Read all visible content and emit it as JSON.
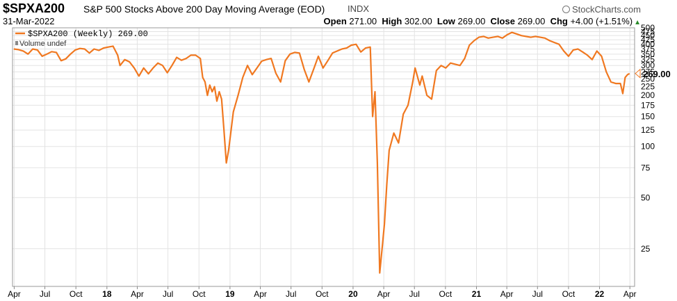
{
  "header": {
    "symbol": "$SPXA200",
    "name": "S&P 500 Stocks Above 200 Day Moving Average (EOD)",
    "exchange": "INDX",
    "logo": "StockCharts.com",
    "date": "31-Mar-2022",
    "open_label": "Open",
    "open": "271.00",
    "high_label": "High",
    "high": "302.00",
    "low_label": "Low",
    "low": "269.00",
    "close_label": "Close",
    "close": "269.00",
    "chg_label": "Chg",
    "chg": "+4.00 (+1.51%)"
  },
  "legend": {
    "series_label": "$SPXA200 (Weekly) 269.00",
    "volume_label": "Volume undef"
  },
  "last_value_label": "269.00",
  "colors": {
    "line": "#f07820",
    "grid": "#e3e3e3",
    "up": "#2a8a2a"
  },
  "chart_data": {
    "type": "line",
    "title": "$SPXA200 S&P 500 Stocks Above 200 Day Moving Average (EOD)",
    "scale": "log",
    "ylim": [
      15,
      500
    ],
    "yticks": [
      25,
      50,
      75,
      100,
      125,
      150,
      175,
      200,
      225,
      250,
      275,
      300,
      325,
      350,
      375,
      400,
      425,
      450,
      475,
      500
    ],
    "ytick_labels": [
      "25",
      "50",
      "75",
      "100",
      "125",
      "150",
      "175",
      "200",
      "225",
      "250",
      "275",
      "300",
      "325",
      "350",
      "375",
      "400",
      "425",
      "450",
      "475",
      "500"
    ],
    "xlim": [
      "2017-03-27",
      "2022-04-15"
    ],
    "x_ticks": [
      {
        "date": "2017-04-01",
        "label": "Apr",
        "bold": false
      },
      {
        "date": "2017-07-01",
        "label": "Jul",
        "bold": false
      },
      {
        "date": "2017-10-01",
        "label": "Oct",
        "bold": false
      },
      {
        "date": "2018-01-01",
        "label": "18",
        "bold": true
      },
      {
        "date": "2018-04-01",
        "label": "Apr",
        "bold": false
      },
      {
        "date": "2018-07-01",
        "label": "Jul",
        "bold": false
      },
      {
        "date": "2018-10-01",
        "label": "Oct",
        "bold": false
      },
      {
        "date": "2019-01-01",
        "label": "19",
        "bold": true
      },
      {
        "date": "2019-04-01",
        "label": "Apr",
        "bold": false
      },
      {
        "date": "2019-07-01",
        "label": "Jul",
        "bold": false
      },
      {
        "date": "2019-10-01",
        "label": "Oct",
        "bold": false
      },
      {
        "date": "2020-01-01",
        "label": "20",
        "bold": true
      },
      {
        "date": "2020-04-01",
        "label": "Apr",
        "bold": false
      },
      {
        "date": "2020-07-01",
        "label": "Jul",
        "bold": false
      },
      {
        "date": "2020-10-01",
        "label": "Oct",
        "bold": false
      },
      {
        "date": "2021-01-01",
        "label": "21",
        "bold": true
      },
      {
        "date": "2021-04-01",
        "label": "Apr",
        "bold": false
      },
      {
        "date": "2021-07-01",
        "label": "Jul",
        "bold": false
      },
      {
        "date": "2021-10-01",
        "label": "Oct",
        "bold": false
      },
      {
        "date": "2022-01-01",
        "label": "22",
        "bold": true
      },
      {
        "date": "2022-04-01",
        "label": "Apr",
        "bold": false
      }
    ],
    "series": [
      {
        "name": "$SPXA200 (Weekly)",
        "points": [
          [
            "2017-03-31",
            375
          ],
          [
            "2017-04-14",
            372
          ],
          [
            "2017-04-28",
            365
          ],
          [
            "2017-05-12",
            350
          ],
          [
            "2017-05-26",
            375
          ],
          [
            "2017-06-09",
            370
          ],
          [
            "2017-06-23",
            340
          ],
          [
            "2017-07-07",
            350
          ],
          [
            "2017-07-21",
            362
          ],
          [
            "2017-08-04",
            358
          ],
          [
            "2017-08-18",
            320
          ],
          [
            "2017-09-01",
            328
          ],
          [
            "2017-09-15",
            350
          ],
          [
            "2017-09-29",
            370
          ],
          [
            "2017-10-13",
            378
          ],
          [
            "2017-10-27",
            375
          ],
          [
            "2017-11-10",
            355
          ],
          [
            "2017-11-24",
            375
          ],
          [
            "2017-12-08",
            368
          ],
          [
            "2017-12-22",
            380
          ],
          [
            "2018-01-05",
            385
          ],
          [
            "2018-01-19",
            390
          ],
          [
            "2018-02-02",
            345
          ],
          [
            "2018-02-09",
            300
          ],
          [
            "2018-02-23",
            325
          ],
          [
            "2018-03-09",
            315
          ],
          [
            "2018-03-23",
            290
          ],
          [
            "2018-04-06",
            260
          ],
          [
            "2018-04-20",
            290
          ],
          [
            "2018-05-04",
            268
          ],
          [
            "2018-05-18",
            290
          ],
          [
            "2018-06-01",
            310
          ],
          [
            "2018-06-15",
            300
          ],
          [
            "2018-06-29",
            272
          ],
          [
            "2018-07-13",
            300
          ],
          [
            "2018-07-27",
            335
          ],
          [
            "2018-08-10",
            322
          ],
          [
            "2018-08-24",
            330
          ],
          [
            "2018-09-07",
            345
          ],
          [
            "2018-09-21",
            345
          ],
          [
            "2018-10-05",
            330
          ],
          [
            "2018-10-12",
            255
          ],
          [
            "2018-10-19",
            240
          ],
          [
            "2018-10-26",
            200
          ],
          [
            "2018-11-02",
            230
          ],
          [
            "2018-11-09",
            210
          ],
          [
            "2018-11-16",
            225
          ],
          [
            "2018-11-23",
            185
          ],
          [
            "2018-11-30",
            210
          ],
          [
            "2018-12-07",
            190
          ],
          [
            "2018-12-14",
            125
          ],
          [
            "2018-12-21",
            80
          ],
          [
            "2018-12-28",
            95
          ],
          [
            "2019-01-11",
            160
          ],
          [
            "2019-01-25",
            200
          ],
          [
            "2019-02-08",
            255
          ],
          [
            "2019-02-22",
            300
          ],
          [
            "2019-03-08",
            265
          ],
          [
            "2019-03-22",
            290
          ],
          [
            "2019-04-05",
            318
          ],
          [
            "2019-04-19",
            325
          ],
          [
            "2019-05-03",
            330
          ],
          [
            "2019-05-17",
            270
          ],
          [
            "2019-05-31",
            240
          ],
          [
            "2019-06-14",
            320
          ],
          [
            "2019-06-28",
            350
          ],
          [
            "2019-07-12",
            358
          ],
          [
            "2019-07-26",
            355
          ],
          [
            "2019-08-09",
            285
          ],
          [
            "2019-08-23",
            240
          ],
          [
            "2019-09-06",
            285
          ],
          [
            "2019-09-20",
            340
          ],
          [
            "2019-10-04",
            290
          ],
          [
            "2019-10-18",
            320
          ],
          [
            "2019-11-01",
            355
          ],
          [
            "2019-11-15",
            365
          ],
          [
            "2019-11-29",
            375
          ],
          [
            "2019-12-13",
            380
          ],
          [
            "2019-12-27",
            395
          ],
          [
            "2020-01-10",
            400
          ],
          [
            "2020-01-24",
            360
          ],
          [
            "2020-02-07",
            380
          ],
          [
            "2020-02-21",
            385
          ],
          [
            "2020-02-28",
            150
          ],
          [
            "2020-03-06",
            210
          ],
          [
            "2020-03-13",
            80
          ],
          [
            "2020-03-20",
            18
          ],
          [
            "2020-03-27",
            25
          ],
          [
            "2020-04-03",
            35
          ],
          [
            "2020-04-10",
            60
          ],
          [
            "2020-04-17",
            95
          ],
          [
            "2020-05-01",
            120
          ],
          [
            "2020-05-15",
            105
          ],
          [
            "2020-05-29",
            155
          ],
          [
            "2020-06-12",
            175
          ],
          [
            "2020-06-26",
            240
          ],
          [
            "2020-07-03",
            290
          ],
          [
            "2020-07-17",
            230
          ],
          [
            "2020-07-24",
            260
          ],
          [
            "2020-08-07",
            200
          ],
          [
            "2020-08-21",
            190
          ],
          [
            "2020-09-04",
            280
          ],
          [
            "2020-09-18",
            300
          ],
          [
            "2020-10-02",
            290
          ],
          [
            "2020-10-16",
            310
          ],
          [
            "2020-10-30",
            305
          ],
          [
            "2020-11-13",
            300
          ],
          [
            "2020-11-27",
            330
          ],
          [
            "2020-12-11",
            395
          ],
          [
            "2020-12-25",
            420
          ],
          [
            "2021-01-08",
            440
          ],
          [
            "2021-01-22",
            445
          ],
          [
            "2021-02-05",
            435
          ],
          [
            "2021-02-19",
            440
          ],
          [
            "2021-03-05",
            445
          ],
          [
            "2021-03-19",
            435
          ],
          [
            "2021-04-02",
            455
          ],
          [
            "2021-04-16",
            470
          ],
          [
            "2021-04-30",
            460
          ],
          [
            "2021-05-14",
            450
          ],
          [
            "2021-05-28",
            445
          ],
          [
            "2021-06-11",
            440
          ],
          [
            "2021-06-25",
            445
          ],
          [
            "2021-07-09",
            440
          ],
          [
            "2021-07-23",
            435
          ],
          [
            "2021-08-06",
            420
          ],
          [
            "2021-08-20",
            410
          ],
          [
            "2021-09-03",
            400
          ],
          [
            "2021-09-17",
            365
          ],
          [
            "2021-10-01",
            340
          ],
          [
            "2021-10-15",
            370
          ],
          [
            "2021-10-29",
            375
          ],
          [
            "2021-11-12",
            360
          ],
          [
            "2021-11-26",
            345
          ],
          [
            "2021-12-10",
            325
          ],
          [
            "2021-12-24",
            365
          ],
          [
            "2022-01-07",
            340
          ],
          [
            "2022-01-21",
            275
          ],
          [
            "2022-02-04",
            240
          ],
          [
            "2022-02-18",
            235
          ],
          [
            "2022-03-04",
            235
          ],
          [
            "2022-03-11",
            205
          ],
          [
            "2022-03-18",
            255
          ],
          [
            "2022-03-25",
            265
          ],
          [
            "2022-03-31",
            269
          ]
        ]
      }
    ]
  }
}
